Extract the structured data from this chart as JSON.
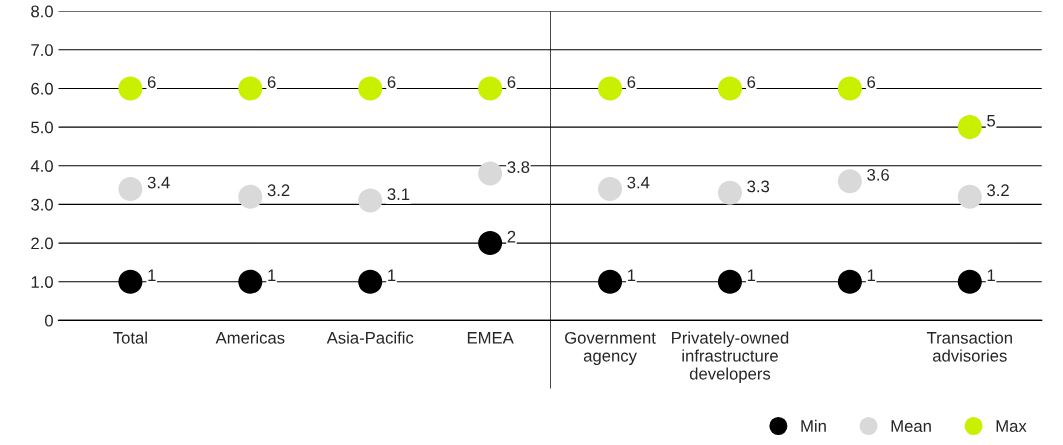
{
  "chart_data": {
    "type": "scatter",
    "categories": [
      "Total",
      "Americas",
      "Asia-Pacific",
      "EMEA",
      "Government\nagency",
      "Privately-owned\ninfrastructure\ndevelopers",
      null,
      "Transaction\nadvisories"
    ],
    "series": [
      {
        "name": "Min",
        "color": "#000000",
        "values": [
          1,
          1,
          1,
          2,
          1,
          1,
          1,
          1
        ],
        "value_labels": [
          "1",
          "1",
          "1",
          "2",
          "1",
          "1",
          "1",
          "1"
        ]
      },
      {
        "name": "Mean",
        "color": "#d9d9d9",
        "values": [
          3.4,
          3.2,
          3.1,
          3.8,
          3.4,
          3.3,
          3.6,
          3.2
        ],
        "value_labels": [
          "3.4",
          "3.2",
          "3.1",
          "3.8",
          "3.4",
          "3.3",
          "3.6",
          "3.2"
        ]
      },
      {
        "name": "Max",
        "color": "#c8f000",
        "values": [
          6,
          6,
          6,
          6,
          6,
          6,
          6,
          5
        ],
        "value_labels": [
          "6",
          "6",
          "6",
          "6",
          "6",
          "6",
          "6",
          "5"
        ]
      }
    ],
    "ylim": [
      0,
      8
    ],
    "yticks": [
      0,
      {
        "value": 1,
        "label": "1.0"
      },
      {
        "value": 2,
        "label": "2.0"
      },
      {
        "value": 3,
        "label": "3.0"
      },
      {
        "value": 4,
        "label": "4.0"
      },
      {
        "value": 5,
        "label": "5.0"
      },
      {
        "value": 6,
        "label": "6.0"
      },
      {
        "value": 7,
        "label": "7.0"
      },
      {
        "value": 8,
        "label": "8.0"
      }
    ],
    "grid": "y",
    "legend": "bottom right",
    "marker": "circle"
  }
}
